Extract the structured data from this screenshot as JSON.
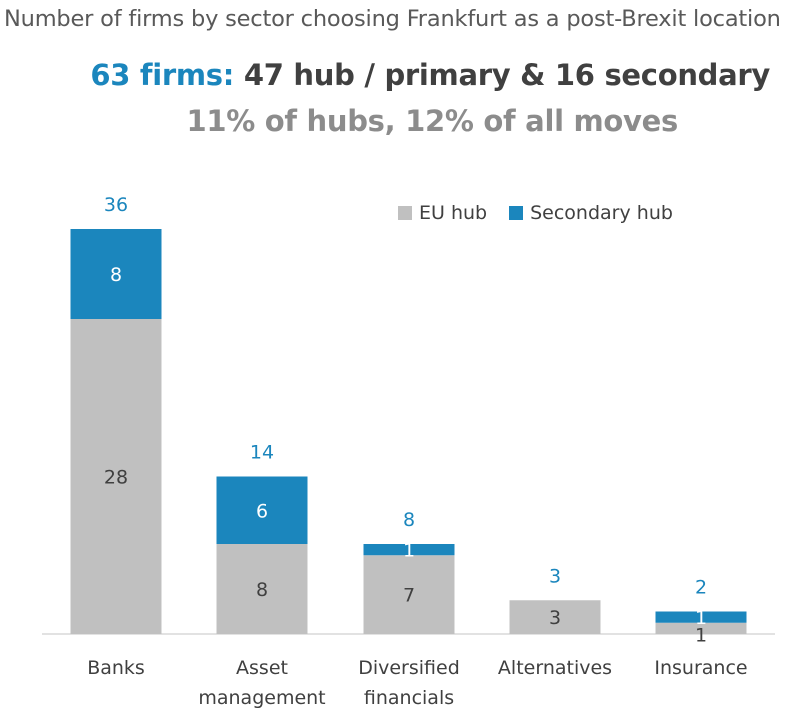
{
  "title": "Number of firms by sector choosing Frankfurt as a post-Brexit location",
  "headline": {
    "accent": "63 firms:",
    "rest": " 47 hub / primary & 16 secondary",
    "sub": "11% of hubs, 12% of all moves"
  },
  "colors": {
    "eu_hub": "#c0c0c0",
    "secondary_hub": "#1b86bd",
    "total_label": "#1b86bd",
    "text": "#404040"
  },
  "chart_data": {
    "type": "bar",
    "stacked": true,
    "categories": [
      "Banks",
      "Asset management",
      "Diversified financials",
      "Alternatives",
      "Insurance"
    ],
    "category_label_lines": [
      [
        "Banks"
      ],
      [
        "Asset",
        "management"
      ],
      [
        "Diversified",
        "financials"
      ],
      [
        "Alternatives"
      ],
      [
        "Insurance"
      ]
    ],
    "series": [
      {
        "name": "EU hub",
        "values": [
          28,
          8,
          7,
          3,
          1
        ]
      },
      {
        "name": "Secondary hub",
        "values": [
          8,
          6,
          1,
          0,
          1
        ]
      }
    ],
    "totals": [
      36,
      14,
      8,
      3,
      2
    ],
    "legend_position": "top-right",
    "ylim": [
      0,
      40
    ],
    "grid": false
  }
}
